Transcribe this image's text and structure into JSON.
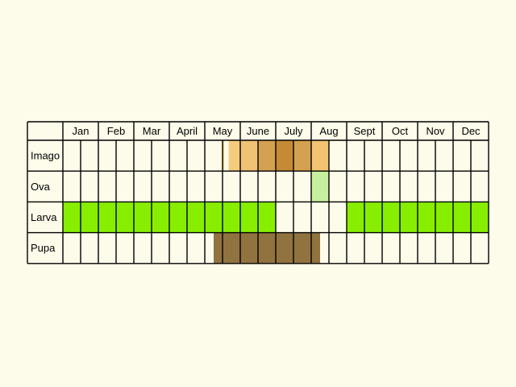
{
  "chart_data": {
    "type": "table",
    "title": "",
    "months": [
      "Jan",
      "Feb",
      "Mar",
      "April",
      "May",
      "June",
      "July",
      "Aug",
      "Sept",
      "Oct",
      "Nov",
      "Dec"
    ],
    "rows": [
      {
        "label": "Imago",
        "bands": [
          {
            "start": 9.0,
            "end": 9.1,
            "color": "#f5cc7c"
          },
          {
            "start": 9.1,
            "end": 9.35,
            "color": "#fdfbea"
          },
          {
            "start": 9.35,
            "end": 10.0,
            "color": "#f5cc7c"
          },
          {
            "start": 10.0,
            "end": 11.0,
            "color": "#f0c274"
          },
          {
            "start": 11.0,
            "end": 12.0,
            "color": "#d4a150"
          },
          {
            "start": 12.0,
            "end": 13.0,
            "color": "#c48a36"
          },
          {
            "start": 13.0,
            "end": 14.0,
            "color": "#d4a150"
          },
          {
            "start": 14.0,
            "end": 15.0,
            "color": "#f2c472"
          }
        ]
      },
      {
        "label": "Ova",
        "bands": [
          {
            "start": 14.0,
            "end": 15.0,
            "color": "#c8ef9e"
          }
        ]
      },
      {
        "label": "Larva",
        "bands": [
          {
            "start": 0.0,
            "end": 12.0,
            "color": "#88ee00"
          },
          {
            "start": 16.0,
            "end": 24.0,
            "color": "#88ee00"
          }
        ]
      },
      {
        "label": "Pupa",
        "bands": [
          {
            "start": 8.5,
            "end": 14.5,
            "color": "#917340"
          }
        ]
      }
    ],
    "colors": {
      "background": "#fdfbea",
      "grid": "#000000"
    }
  }
}
